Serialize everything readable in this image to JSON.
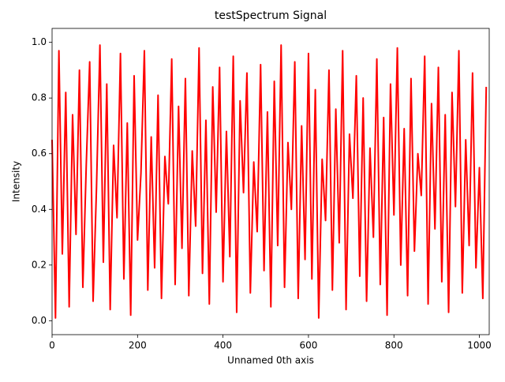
{
  "chart_data": {
    "type": "line",
    "title": "testSpectrum Signal",
    "xlabel": "Unnamed 0th axis",
    "ylabel": "Intensity",
    "x": [
      0,
      8,
      16,
      24,
      32,
      40,
      48,
      56,
      64,
      72,
      80,
      88,
      96,
      104,
      112,
      120,
      128,
      136,
      144,
      152,
      160,
      168,
      176,
      184,
      192,
      200,
      208,
      216,
      224,
      232,
      240,
      248,
      256,
      264,
      272,
      280,
      288,
      296,
      304,
      312,
      320,
      328,
      336,
      344,
      352,
      360,
      368,
      376,
      384,
      392,
      400,
      408,
      416,
      424,
      432,
      440,
      448,
      456,
      464,
      472,
      480,
      488,
      496,
      504,
      512,
      520,
      528,
      536,
      544,
      552,
      560,
      568,
      576,
      584,
      592,
      600,
      608,
      616,
      624,
      632,
      640,
      648,
      656,
      664,
      672,
      680,
      688,
      696,
      704,
      712,
      720,
      728,
      736,
      744,
      752,
      760,
      768,
      776,
      784,
      792,
      800,
      808,
      816,
      824,
      832,
      840,
      848,
      856,
      864,
      872,
      880,
      888,
      896,
      904,
      912,
      920,
      928,
      936,
      944,
      952,
      960,
      968,
      976,
      984,
      992,
      1000,
      1008,
      1016
    ],
    "series": [
      {
        "color": "#ff0000",
        "values": [
          0.65,
          0.01,
          0.97,
          0.24,
          0.82,
          0.05,
          0.74,
          0.31,
          0.9,
          0.12,
          0.56,
          0.93,
          0.07,
          0.48,
          0.99,
          0.21,
          0.85,
          0.04,
          0.63,
          0.37,
          0.96,
          0.15,
          0.71,
          0.02,
          0.88,
          0.29,
          0.53,
          0.97,
          0.11,
          0.66,
          0.19,
          0.81,
          0.08,
          0.59,
          0.42,
          0.94,
          0.13,
          0.77,
          0.26,
          0.87,
          0.09,
          0.61,
          0.34,
          0.98,
          0.17,
          0.72,
          0.06,
          0.84,
          0.39,
          0.91,
          0.14,
          0.68,
          0.23,
          0.95,
          0.03,
          0.79,
          0.46,
          0.89,
          0.1,
          0.57,
          0.32,
          0.92,
          0.18,
          0.75,
          0.05,
          0.86,
          0.27,
          0.99,
          0.12,
          0.64,
          0.4,
          0.93,
          0.08,
          0.7,
          0.22,
          0.96,
          0.15,
          0.83,
          0.01,
          0.58,
          0.36,
          0.9,
          0.11,
          0.76,
          0.28,
          0.97,
          0.04,
          0.67,
          0.44,
          0.88,
          0.16,
          0.8,
          0.07,
          0.62,
          0.3,
          0.94,
          0.13,
          0.73,
          0.02,
          0.85,
          0.38,
          0.98,
          0.2,
          0.69,
          0.09,
          0.87,
          0.25,
          0.6,
          0.45,
          0.95,
          0.06,
          0.78,
          0.33,
          0.91,
          0.14,
          0.74,
          0.03,
          0.82,
          0.41,
          0.97,
          0.1,
          0.65,
          0.27,
          0.89,
          0.19,
          0.55,
          0.08,
          0.84
        ]
      }
    ],
    "xlim": [
      0,
      1023
    ],
    "xticks": [
      0,
      200,
      400,
      600,
      800,
      1000
    ],
    "ylim": [
      -0.05,
      1.05
    ],
    "yticks": [
      {
        "value": 0,
        "label": "0.0"
      },
      {
        "value": 0.2,
        "label": "0.2"
      },
      {
        "value": 0.4,
        "label": "0.4"
      },
      {
        "value": 0.6,
        "label": "0.6"
      },
      {
        "value": 0.8,
        "label": "0.8"
      },
      {
        "value": 1,
        "label": "1.0"
      }
    ]
  }
}
